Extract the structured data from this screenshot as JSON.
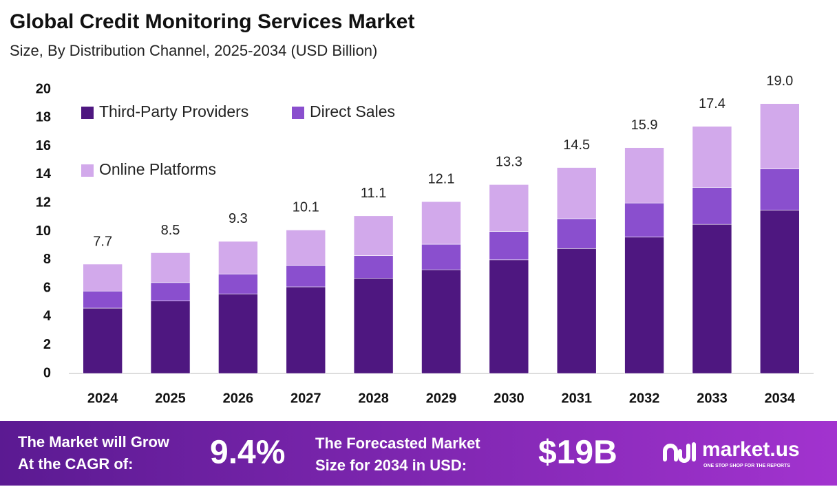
{
  "chart_data": {
    "type": "stacked_bar",
    "title": "Global Credit Monitoring Services Market",
    "subtitle": "Size, By Distribution Channel, 2025-2034 (USD Billion)",
    "categories": [
      "2024",
      "2025",
      "2026",
      "2027",
      "2028",
      "2029",
      "2030",
      "2031",
      "2032",
      "2033",
      "2034"
    ],
    "series": [
      {
        "name": "Third-Party Providers",
        "color": "#4e1780",
        "values": [
          4.6,
          5.1,
          5.6,
          6.1,
          6.7,
          7.3,
          8.0,
          8.8,
          9.6,
          10.5,
          11.5
        ]
      },
      {
        "name": "Direct Sales",
        "color": "#8a4fce",
        "values": [
          1.2,
          1.3,
          1.4,
          1.5,
          1.6,
          1.8,
          2.0,
          2.1,
          2.4,
          2.6,
          2.9
        ]
      },
      {
        "name": "Online Platforms",
        "color": "#d2a9eb",
        "values": [
          1.9,
          2.1,
          2.3,
          2.5,
          2.8,
          3.0,
          3.3,
          3.6,
          3.9,
          4.3,
          4.6
        ]
      }
    ],
    "totals": {
      "values": [
        7.7,
        8.5,
        9.3,
        10.1,
        11.1,
        12.1,
        13.3,
        14.5,
        15.9,
        17.4,
        19.0
      ],
      "value_labels": [
        "7.7",
        "8.5",
        "9.3",
        "10.1",
        "11.1",
        "12.1",
        "13.3",
        "14.5",
        "15.9",
        "17.4",
        "19.0"
      ]
    },
    "ylim": [
      0,
      20
    ],
    "yticks": [
      0,
      2,
      4,
      6,
      8,
      10,
      12,
      14,
      16,
      18,
      20
    ],
    "grid": false,
    "legend": "top-left"
  },
  "footer": {
    "cagr_text": [
      "The Market will Grow",
      "At the CAGR of:"
    ],
    "cagr_value": "9.4%",
    "forecast_text": [
      "The Forecasted Market",
      "Size for 2034 in USD:"
    ],
    "forecast_value": "$19B",
    "brand": "market.us",
    "tagline": "ONE STOP SHOP FOR THE REPORTS"
  }
}
